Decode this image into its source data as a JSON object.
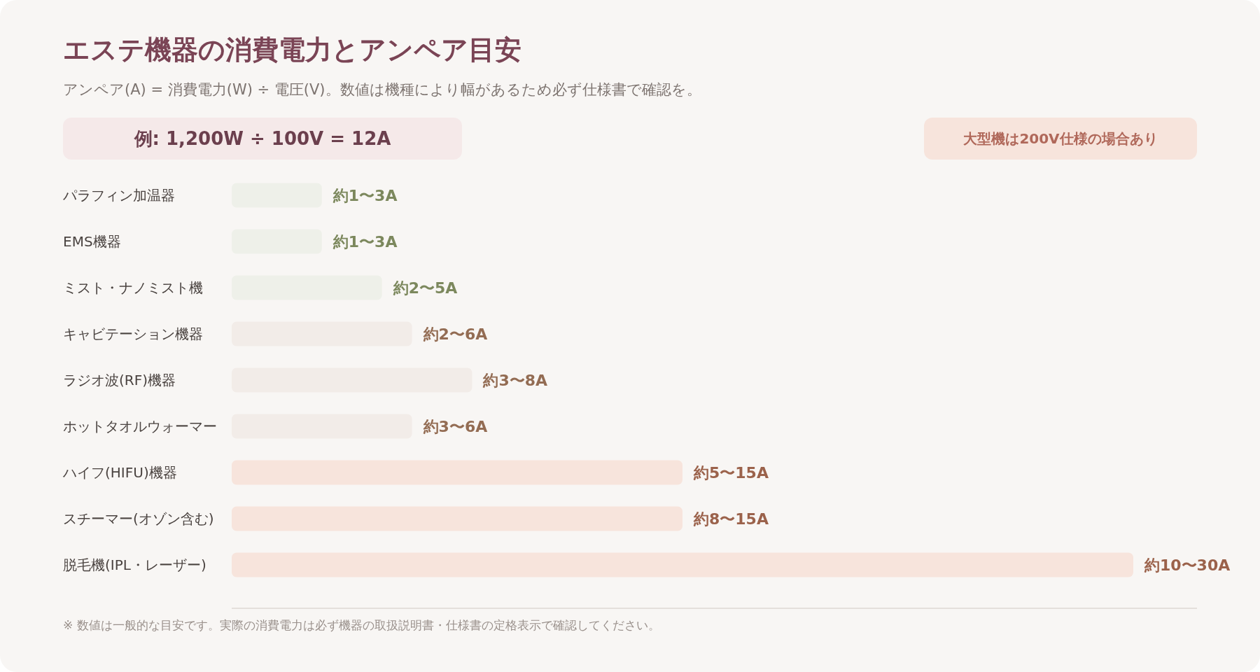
{
  "chart_data": {
    "type": "bar",
    "orientation": "horizontal",
    "title": "エステ機器の消費電力とアンペア目安",
    "subtitle": "アンペア(A) = 消費電力(W) ÷ 電圧(V)。数値は機種により幅があるため必ず仕様書で確認を。",
    "categories": [
      "パラフィン加温器",
      "EMS機器",
      "ミスト・ナノミスト機",
      "キャビテーション機器",
      "ラジオ波(RF)機器",
      "ホットタオルウォーマー",
      "ハイフ(HIFU)機器",
      "スチーマー(オゾン含む)",
      "脱毛機(IPL・レーザー)"
    ],
    "values": [
      3,
      3,
      5,
      6,
      8,
      6,
      15,
      15,
      30
    ],
    "value_labels": [
      "約1〜3A",
      "約1〜3A",
      "約2〜5A",
      "約2〜6A",
      "約3〜8A",
      "約3〜6A",
      "約5〜15A",
      "約8〜15A",
      "約10〜30A"
    ],
    "colors": [
      "#eef0e9",
      "#eef0e9",
      "#eef0e9",
      "#f2ece8",
      "#f2ece8",
      "#f2ece8",
      "#f7e4dc",
      "#f7e4dc",
      "#f7e4dc"
    ],
    "annotations": [
      "例: 1,200W ÷ 100V = 12A",
      "大型機は200V仕様の場合あり",
      "※ 数値は一般的な目安です。実際の消費電力は必ず機器の取扱説明書・仕様書の定格表示で確認してください。"
    ]
  }
}
